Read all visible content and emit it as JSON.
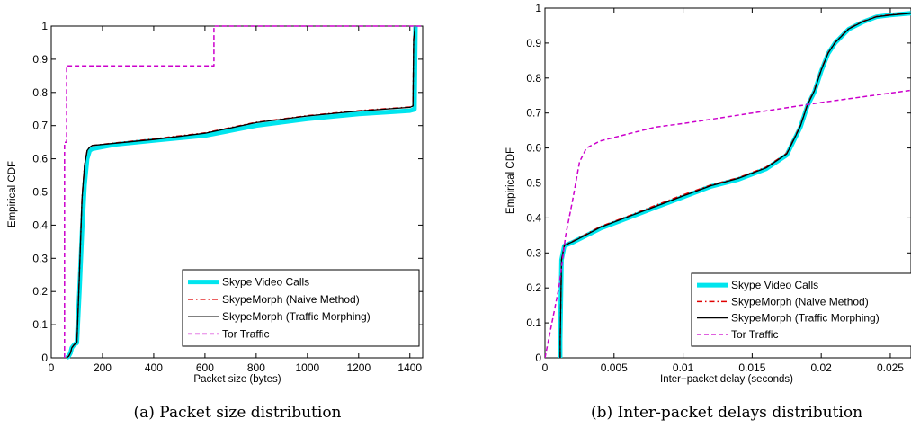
{
  "colors": {
    "skype": "#00e5ee",
    "naive": "#e00000",
    "morph": "#000000",
    "tor": "#cc00cc"
  },
  "chart_data": [
    {
      "type": "line",
      "caption": "(a) Packet size distribution",
      "xlabel": "Packet size (bytes)",
      "ylabel": "Empirical CDF",
      "xlim": [
        0,
        1450
      ],
      "ylim": [
        0,
        1
      ],
      "xticks": [
        0,
        200,
        400,
        600,
        800,
        1000,
        1200,
        1400
      ],
      "xtick_labels": [
        "0",
        "200",
        "400",
        "600",
        "800",
        "1000",
        "1200",
        "1400"
      ],
      "yticks": [
        0,
        0.1,
        0.2,
        0.3,
        0.4,
        0.5,
        0.6,
        0.7,
        0.8,
        0.9,
        1
      ],
      "ytick_labels": [
        "0",
        "0.1",
        "0.2",
        "0.3",
        "0.4",
        "0.5",
        "0.6",
        "0.7",
        "0.8",
        "0.9",
        "1"
      ],
      "legend_position": "lower-right",
      "series": [
        {
          "name": "Skype Video Calls",
          "style": "thick",
          "x": [
            60,
            68,
            75,
            80,
            90,
            100,
            110,
            120,
            130,
            140,
            150,
            160,
            250,
            400,
            600,
            800,
            1000,
            1200,
            1400,
            1415,
            1418,
            1422
          ],
          "y": [
            0,
            0.005,
            0.015,
            0.03,
            0.04,
            0.045,
            0.2,
            0.38,
            0.52,
            0.6,
            0.625,
            0.63,
            0.643,
            0.655,
            0.67,
            0.7,
            0.72,
            0.735,
            0.745,
            0.748,
            0.75,
            1
          ]
        },
        {
          "name": "SkypeMorph (Naive Method)",
          "style": "dashdot",
          "x": [
            60,
            68,
            75,
            80,
            90,
            100,
            110,
            120,
            130,
            140,
            150,
            160,
            250,
            400,
            600,
            800,
            1000,
            1200,
            1400,
            1412,
            1415,
            1420
          ],
          "y": [
            0,
            0.005,
            0.015,
            0.03,
            0.04,
            0.045,
            0.25,
            0.48,
            0.58,
            0.625,
            0.635,
            0.64,
            0.648,
            0.66,
            0.678,
            0.71,
            0.73,
            0.745,
            0.756,
            0.76,
            0.96,
            1
          ]
        },
        {
          "name": "SkypeMorph (Traffic Morphing)",
          "style": "solid",
          "x": [
            60,
            68,
            75,
            80,
            90,
            100,
            110,
            120,
            130,
            140,
            150,
            160,
            250,
            400,
            600,
            800,
            1000,
            1200,
            1400,
            1412,
            1415,
            1420
          ],
          "y": [
            0,
            0.005,
            0.015,
            0.03,
            0.04,
            0.045,
            0.25,
            0.48,
            0.58,
            0.625,
            0.635,
            0.64,
            0.647,
            0.658,
            0.677,
            0.709,
            0.729,
            0.744,
            0.755,
            0.759,
            0.96,
            1
          ]
        },
        {
          "name": "Tor Traffic",
          "style": "dashed",
          "x": [
            52,
            52,
            60,
            60,
            500,
            635,
            635,
            1400,
            1450
          ],
          "y": [
            0,
            0.65,
            0.65,
            0.88,
            0.88,
            0.88,
            1,
            1,
            1
          ]
        }
      ]
    },
    {
      "type": "line",
      "caption": "(b) Inter-packet delays distribution",
      "xlabel": "Inter−packet delay (seconds)",
      "ylabel": "Empirical CDF",
      "xlim": [
        0,
        0.0265
      ],
      "ylim": [
        0,
        1
      ],
      "xticks": [
        0,
        0.005,
        0.01,
        0.015,
        0.02,
        0.025
      ],
      "xtick_labels": [
        "0",
        "0.005",
        "0.01",
        "0.015",
        "0.02",
        "0.025"
      ],
      "yticks": [
        0,
        0.1,
        0.2,
        0.3,
        0.4,
        0.5,
        0.6,
        0.7,
        0.8,
        0.9,
        1
      ],
      "ytick_labels": [
        "0",
        "0.1",
        "0.2",
        "0.3",
        "0.4",
        "0.5",
        "0.6",
        "0.7",
        "0.8",
        "0.9",
        "1"
      ],
      "legend_position": "lower-right",
      "series": [
        {
          "name": "Skype Video Calls",
          "style": "thick",
          "x": [
            0.0011,
            0.0011,
            0.0012,
            0.0014,
            0.002,
            0.003,
            0.004,
            0.006,
            0.008,
            0.01,
            0.012,
            0.014,
            0.016,
            0.0175,
            0.018,
            0.0185,
            0.019,
            0.0195,
            0.02,
            0.0205,
            0.021,
            0.022,
            0.023,
            0.024,
            0.025,
            0.0265
          ],
          "y": [
            0,
            0.05,
            0.28,
            0.32,
            0.33,
            0.35,
            0.37,
            0.4,
            0.43,
            0.46,
            0.49,
            0.51,
            0.54,
            0.58,
            0.62,
            0.66,
            0.72,
            0.76,
            0.82,
            0.87,
            0.9,
            0.94,
            0.96,
            0.975,
            0.98,
            0.985
          ]
        },
        {
          "name": "SkypeMorph (Naive Method)",
          "style": "dashdot",
          "x": [
            0.0011,
            0.0011,
            0.0012,
            0.0014,
            0.002,
            0.003,
            0.004,
            0.006,
            0.008,
            0.01,
            0.012,
            0.014,
            0.016,
            0.0175,
            0.018,
            0.0185,
            0.019,
            0.0195,
            0.02,
            0.0205,
            0.021,
            0.022,
            0.023,
            0.024,
            0.025,
            0.0265
          ],
          "y": [
            0,
            0.05,
            0.28,
            0.322,
            0.333,
            0.354,
            0.375,
            0.405,
            0.436,
            0.466,
            0.494,
            0.515,
            0.545,
            0.585,
            0.625,
            0.665,
            0.725,
            0.765,
            0.825,
            0.872,
            0.902,
            0.942,
            0.962,
            0.976,
            0.981,
            0.986
          ]
        },
        {
          "name": "SkypeMorph (Traffic Morphing)",
          "style": "solid",
          "x": [
            0.0011,
            0.0011,
            0.0012,
            0.0014,
            0.002,
            0.003,
            0.004,
            0.006,
            0.008,
            0.01,
            0.012,
            0.014,
            0.016,
            0.0175,
            0.018,
            0.0185,
            0.019,
            0.0195,
            0.02,
            0.0205,
            0.021,
            0.022,
            0.023,
            0.024,
            0.025,
            0.0265
          ],
          "y": [
            0,
            0.05,
            0.28,
            0.321,
            0.332,
            0.352,
            0.373,
            0.403,
            0.433,
            0.463,
            0.492,
            0.513,
            0.543,
            0.583,
            0.623,
            0.663,
            0.723,
            0.763,
            0.823,
            0.871,
            0.901,
            0.941,
            0.961,
            0.975,
            0.98,
            0.985
          ]
        },
        {
          "name": "Tor Traffic",
          "style": "dashed",
          "x": [
            0,
            0.0005,
            0.001,
            0.0015,
            0.002,
            0.0025,
            0.003,
            0.004,
            0.006,
            0.008,
            0.01,
            0.015,
            0.02,
            0.0265
          ],
          "y": [
            0,
            0.1,
            0.2,
            0.35,
            0.45,
            0.56,
            0.6,
            0.62,
            0.64,
            0.66,
            0.67,
            0.7,
            0.73,
            0.765
          ]
        }
      ]
    }
  ]
}
